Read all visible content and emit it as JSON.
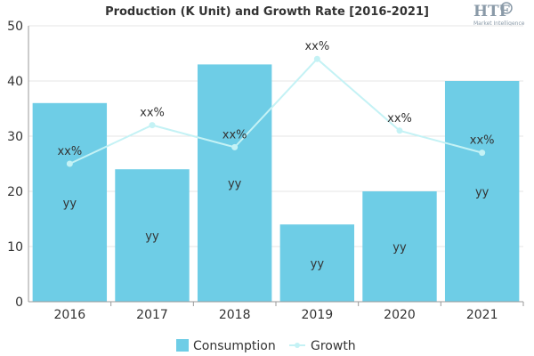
{
  "chart_data": {
    "type": "bar",
    "title": "Production (K Unit) and Growth Rate [2016-2021]",
    "categories": [
      "2016",
      "2017",
      "2018",
      "2019",
      "2020",
      "2021"
    ],
    "series": [
      {
        "name": "Consumption",
        "type": "bar",
        "values": [
          36,
          24,
          43,
          14,
          20,
          40
        ],
        "labels": [
          "yy",
          "yy",
          "yy",
          "yy",
          "yy",
          "yy"
        ]
      },
      {
        "name": "Growth",
        "type": "line",
        "values": [
          25,
          32,
          28,
          44,
          31,
          27
        ],
        "labels": [
          "xx%",
          "xx%",
          "xx%",
          "xx%",
          "xx%",
          "xx%"
        ]
      }
    ],
    "ylim": [
      0,
      50
    ],
    "yticks": [
      0,
      10,
      20,
      30,
      40,
      50
    ],
    "grid": true,
    "legend": "bottom-center"
  },
  "colors": {
    "bar": "#6ecde6",
    "line": "#c4f2f5",
    "grid": "#e6e6e6"
  },
  "logo": {
    "text": "HTF",
    "subtext": "Market Intelligence"
  }
}
